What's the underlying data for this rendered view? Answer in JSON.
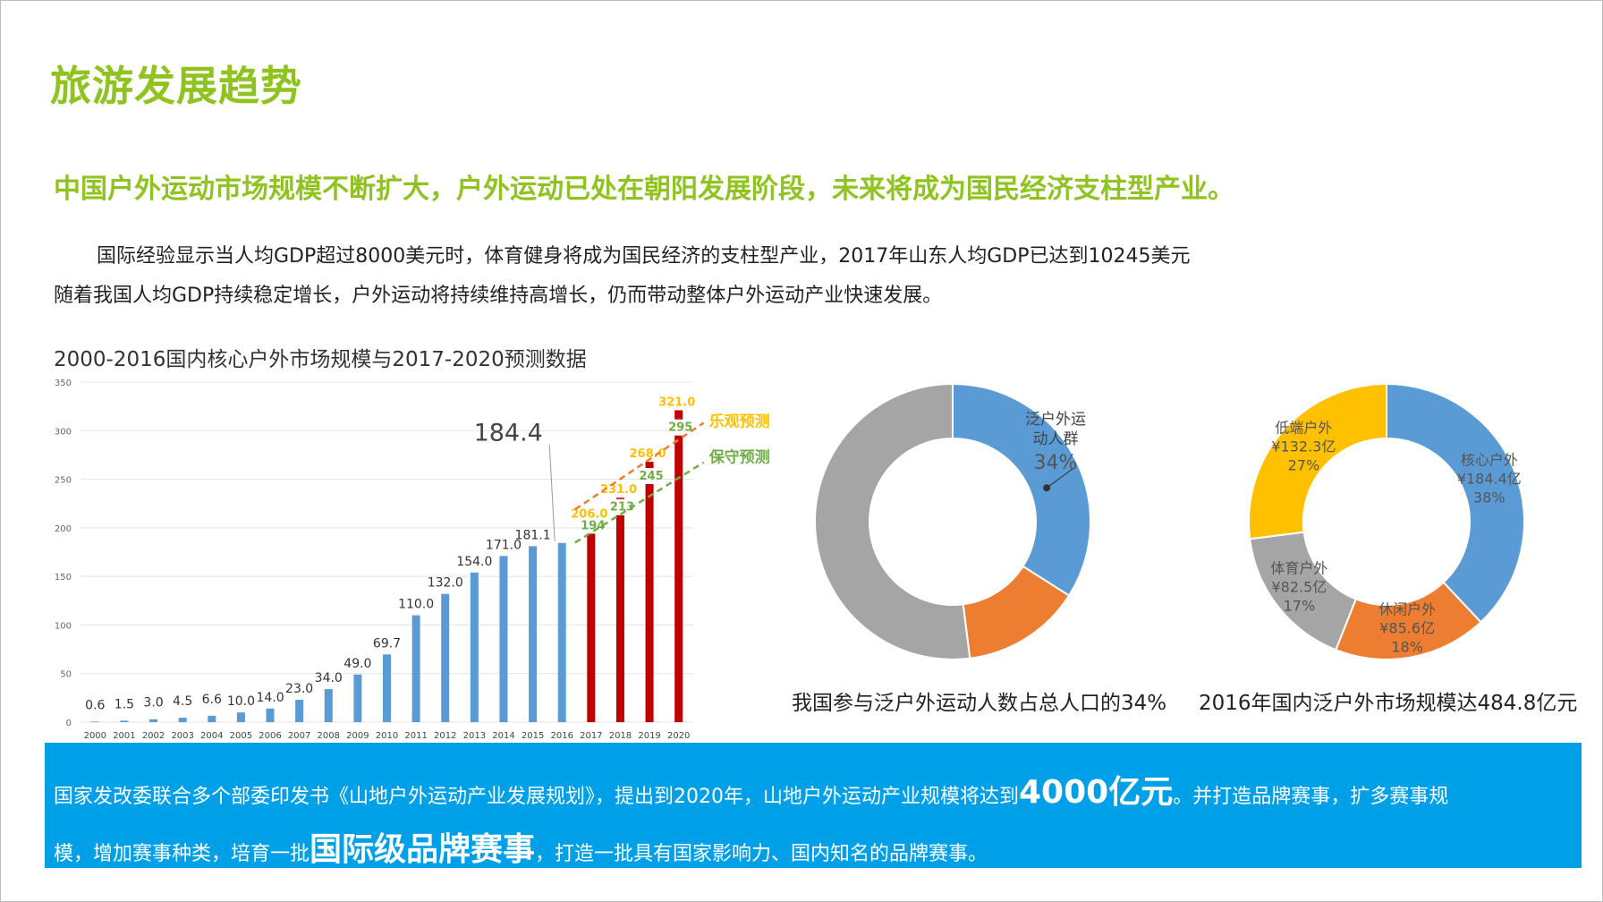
{
  "slide": {
    "title": "旅游发展趋势",
    "headline": "中国户外运动市场规模不断扩大，户外运动已处在朝阳发展阶段，未来将成为国民经济支柱型产业。",
    "para1": "国际经验显示当人均GDP超过8000美元时，体育健身将成为国民经济的支柱型产业，2017年山东人均GDP已达到10245美元",
    "para2": "随着我国人均GDP持续稳定增长，户外运动将持续维持高增长，仍而带动整体户外运动产业快速发展。",
    "chart_title": "2000-2016国内核心户外市场规模与2017-2020预测数据",
    "donut1_caption": "我国参与泛户外运动人数占总人口的34%",
    "donut2_caption": "2016年国内泛户外市场规模达484.8亿元",
    "bottom": {
      "line1_a": "国家发改委联合多个部委印发书《山地户外运动产业发展规划》，提出到2020年，山地户外运动产业规模将达到",
      "line1_big": "4000亿元",
      "line1_b": "。并打造品牌赛事，扩多赛事规",
      "line2_a": "模，增加赛事种类，培育一批",
      "line2_big": "国际级品牌赛事",
      "line2_b": "，打造一批具有国家影响力、国内知名的品牌赛事。"
    }
  },
  "colors": {
    "title_green": "#8fc31f",
    "bar_blue": "#5b9bd5",
    "bar_red": "#c00000",
    "optimistic": "#ffc000",
    "conservative": "#70ad47",
    "box_blue": "#00a0e9"
  },
  "chart_data": [
    {
      "type": "bar",
      "title": "2000-2016国内核心户外市场规模与2017-2020预测数据",
      "categories": [
        "2000",
        "2001",
        "2002",
        "2003",
        "2004",
        "2005",
        "2006",
        "2007",
        "2008",
        "2009",
        "2010",
        "2011",
        "2012",
        "2013",
        "2014",
        "2015",
        "2016",
        "2017",
        "2018",
        "2019",
        "2020"
      ],
      "values": [
        0.6,
        1.5,
        3.0,
        4.5,
        6.6,
        10.0,
        14.0,
        23.0,
        34.0,
        49.0,
        69.7,
        110.0,
        132.0,
        154.0,
        171.0,
        181.1,
        184.4,
        null,
        null,
        null,
        null
      ],
      "value_labels": [
        "0.6",
        "1.5",
        "3.0",
        "4.5",
        "6.6",
        "10.0",
        "14.0",
        "23.0",
        "34.0",
        "49.0",
        "69.7",
        "110.0",
        "132.0",
        "154.0",
        "171.0",
        "181.1",
        "",
        "",
        "",
        "",
        ""
      ],
      "forecast": {
        "optimistic": {
          "name": "乐观预测",
          "categories": [
            "2017",
            "2018",
            "2019",
            "2020"
          ],
          "values": [
            206.0,
            231.0,
            268.0,
            321.0
          ],
          "labels": [
            "206.0",
            "231.0",
            "268.0",
            "321.0"
          ]
        },
        "conservative": {
          "name": "保守预测",
          "categories": [
            "2017",
            "2018",
            "2019",
            "2020"
          ],
          "values": [
            194,
            213,
            245,
            295
          ],
          "labels": [
            "194",
            "213",
            "245",
            "295"
          ]
        }
      },
      "callout": {
        "category": "2016",
        "label": "184.4"
      },
      "ylim": [
        0,
        350
      ],
      "yticks": [
        0,
        50,
        100,
        150,
        200,
        250,
        300,
        350
      ],
      "grid": true
    },
    {
      "type": "pie",
      "style": "donut",
      "slices": [
        {
          "label": "泛户外运动人群",
          "value": 34,
          "percent_label": "34%",
          "color": "#5b9bd5",
          "labeled": true
        },
        {
          "label": "",
          "value": 14,
          "color": "#ed7d31",
          "labeled": false
        },
        {
          "label": "",
          "value": 52,
          "color": "#a5a5a5",
          "labeled": false
        }
      ]
    },
    {
      "type": "pie",
      "style": "donut",
      "slices": [
        {
          "label": "核心户外",
          "amount": "¥184.4亿",
          "value": 38,
          "percent_label": "38%",
          "color": "#5b9bd5"
        },
        {
          "label": "休闲户外",
          "amount": "¥85.6亿",
          "value": 18,
          "percent_label": "18%",
          "color": "#ed7d31"
        },
        {
          "label": "体育户外",
          "amount": "¥82.5亿",
          "value": 17,
          "percent_label": "17%",
          "color": "#a5a5a5"
        },
        {
          "label": "低端户外",
          "amount": "¥132.3亿",
          "value": 27,
          "percent_label": "27%",
          "color": "#ffc000"
        }
      ]
    }
  ]
}
